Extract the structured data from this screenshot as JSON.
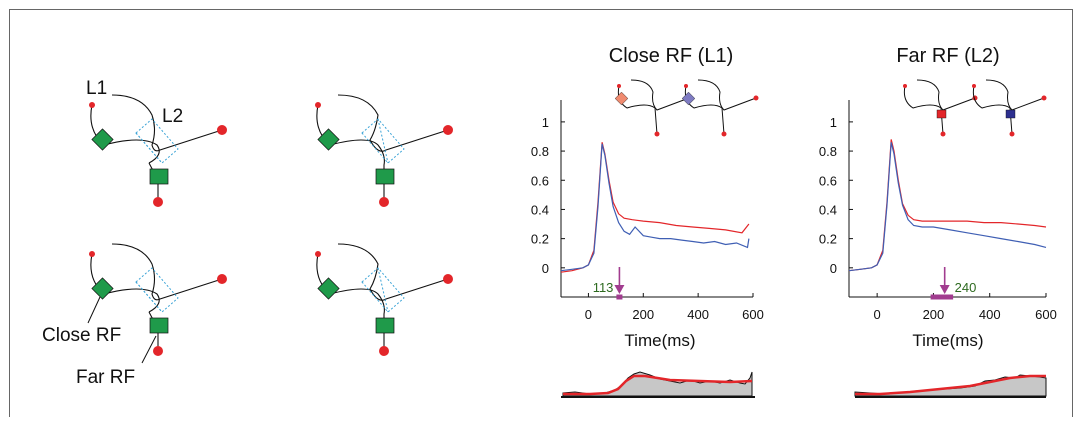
{
  "schematics": {
    "label_L1": "L1",
    "label_L2": "L2",
    "label_close": "Close RF",
    "label_far": "Far RF"
  },
  "colors": {
    "red_trace": "#e3262a",
    "blue_trace": "#3f5fb4",
    "rf_green": "#1f9a4a",
    "marker_purple": "#a13c8f",
    "dotted_cyan": "#3aa3d6",
    "gray_fill": "#c7c7c7",
    "latency_text": "#2d6a1f"
  },
  "chart_data": [
    {
      "type": "line",
      "title": "Close RF (L1)",
      "xlabel": "Time(ms)",
      "ylabel": "",
      "xlim": [
        -100,
        600
      ],
      "ylim": [
        -0.2,
        1.15
      ],
      "xticks": [
        0,
        200,
        400,
        600
      ],
      "yticks": [
        0,
        0.2,
        0.4,
        0.6,
        0.8,
        1
      ],
      "latency_label": "113",
      "latency_ms": 113,
      "latency_range": [
        102,
        124
      ],
      "series": [
        {
          "color": "red",
          "x": [
            -100,
            -60,
            -20,
            0,
            20,
            35,
            50,
            60,
            75,
            90,
            110,
            130,
            160,
            200,
            260,
            320,
            380,
            440,
            500,
            560,
            585
          ],
          "y": [
            -0.03,
            -0.02,
            0.0,
            0.02,
            0.12,
            0.45,
            0.86,
            0.78,
            0.6,
            0.45,
            0.37,
            0.34,
            0.33,
            0.32,
            0.31,
            0.29,
            0.28,
            0.27,
            0.26,
            0.24,
            0.3
          ]
        },
        {
          "color": "blue",
          "x": [
            -100,
            -60,
            -20,
            0,
            20,
            35,
            50,
            60,
            75,
            90,
            110,
            130,
            150,
            170,
            200,
            230,
            260,
            300,
            340,
            380,
            420,
            460,
            500,
            540,
            580,
            585
          ],
          "y": [
            -0.02,
            -0.01,
            0.0,
            0.02,
            0.1,
            0.42,
            0.85,
            0.77,
            0.58,
            0.42,
            0.31,
            0.25,
            0.23,
            0.28,
            0.22,
            0.21,
            0.2,
            0.2,
            0.19,
            0.18,
            0.17,
            0.18,
            0.16,
            0.17,
            0.14,
            0.2
          ]
        }
      ]
    },
    {
      "type": "line",
      "title": "Far RF (L2)",
      "xlabel": "Time(ms)",
      "ylabel": "",
      "xlim": [
        -100,
        600
      ],
      "ylim": [
        -0.2,
        1.15
      ],
      "xticks": [
        0,
        200,
        400,
        600
      ],
      "yticks": [
        0,
        0.2,
        0.4,
        0.6,
        0.8,
        1
      ],
      "latency_label": "240",
      "latency_ms": 240,
      "latency_range": [
        190,
        270
      ],
      "series": [
        {
          "color": "red",
          "x": [
            -100,
            -60,
            -20,
            0,
            20,
            35,
            50,
            60,
            75,
            90,
            110,
            130,
            160,
            200,
            260,
            320,
            380,
            440,
            500,
            560,
            600
          ],
          "y": [
            -0.02,
            -0.01,
            0.0,
            0.02,
            0.12,
            0.45,
            0.88,
            0.8,
            0.6,
            0.44,
            0.36,
            0.33,
            0.32,
            0.32,
            0.32,
            0.32,
            0.31,
            0.31,
            0.3,
            0.29,
            0.28
          ]
        },
        {
          "color": "blue",
          "x": [
            -100,
            -60,
            -20,
            0,
            20,
            35,
            50,
            60,
            75,
            90,
            110,
            130,
            160,
            200,
            260,
            320,
            380,
            440,
            500,
            560,
            600
          ],
          "y": [
            -0.02,
            -0.01,
            0.0,
            0.02,
            0.1,
            0.43,
            0.86,
            0.78,
            0.58,
            0.43,
            0.33,
            0.29,
            0.28,
            0.28,
            0.26,
            0.24,
            0.22,
            0.2,
            0.18,
            0.16,
            0.14
          ]
        }
      ]
    }
  ]
}
